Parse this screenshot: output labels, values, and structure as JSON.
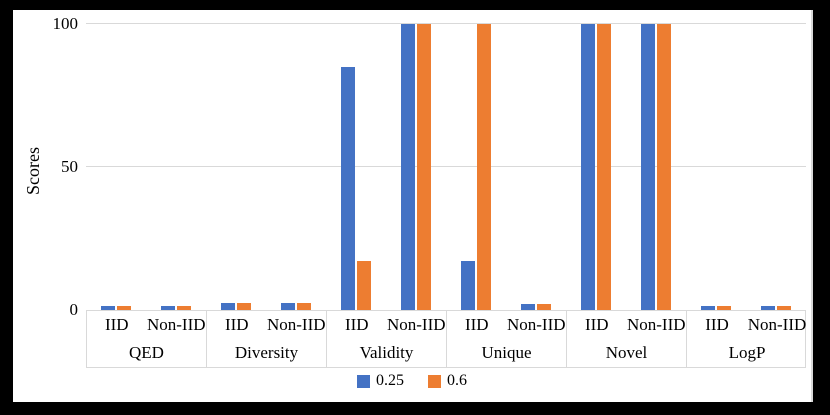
{
  "frame": {
    "background_color": "#000000",
    "panel_color": "#ffffff"
  },
  "chart_data": {
    "type": "bar",
    "title": "",
    "ylabel": "Scores",
    "xlabel": "",
    "ylim": [
      0,
      100
    ],
    "yticks": [
      0,
      50,
      100
    ],
    "grid": "horizontal gridlines at 50 and 100",
    "gridline_color": "#d9d9d9",
    "axis_line_color": "#d9d9d9",
    "legend_position": "bottom center",
    "groups": [
      "QED",
      "Diversity",
      "Validity",
      "Unique",
      "Novel",
      "LogP"
    ],
    "subcategories": [
      "IID",
      "Non-IID"
    ],
    "series": [
      {
        "name": "0.25",
        "color": "#4472C4",
        "values": [
          1.5,
          1.5,
          2.5,
          2.5,
          85,
          100,
          17,
          2,
          100,
          100,
          1.5,
          1.5
        ]
      },
      {
        "name": "0.6",
        "color": "#ED7D31",
        "values": [
          1.5,
          1.5,
          2.5,
          2.5,
          17,
          100,
          100,
          2,
          100,
          100,
          1.5,
          1.5
        ]
      }
    ]
  }
}
